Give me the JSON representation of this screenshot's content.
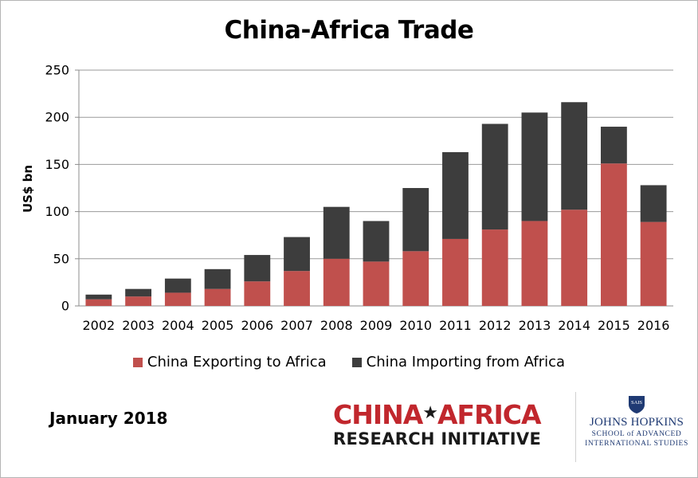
{
  "chart_data": {
    "type": "bar",
    "stacked": true,
    "title": "China-Africa Trade",
    "xlabel": "",
    "ylabel": "US$ bn",
    "ylim": [
      0,
      250
    ],
    "yticks": [
      0,
      50,
      100,
      150,
      200,
      250
    ],
    "grid": true,
    "legend_position": "bottom",
    "categories": [
      "2002",
      "2003",
      "2004",
      "2005",
      "2006",
      "2007",
      "2008",
      "2009",
      "2010",
      "2011",
      "2012",
      "2013",
      "2014",
      "2015",
      "2016"
    ],
    "series": [
      {
        "name": "China Exporting to Africa",
        "color": "#c0504d",
        "values": [
          7,
          10,
          14,
          18,
          26,
          37,
          50,
          47,
          58,
          71,
          81,
          90,
          102,
          151,
          89
        ]
      },
      {
        "name": "China Importing from Africa",
        "color": "#3d3d3d",
        "values": [
          5,
          8,
          15,
          21,
          28,
          36,
          55,
          43,
          67,
          92,
          112,
          115,
          114,
          39,
          39
        ]
      }
    ]
  },
  "footer": {
    "date": "January 2018",
    "cari": {
      "china": "CHINA",
      "africa": "AFRICA",
      "line2": "RESEARCH INITIATIVE"
    },
    "jhu": {
      "name": "JOHNS HOPKINS",
      "line1": "SCHOOL of ADVANCED",
      "line2": "INTERNATIONAL STUDIES",
      "shield_text": "SAIS"
    }
  },
  "colors": {
    "grid": "#9a9a9a",
    "axis": "#8c8c8c",
    "brand_red": "#c1272d",
    "jhu_blue": "#1f3a73"
  }
}
